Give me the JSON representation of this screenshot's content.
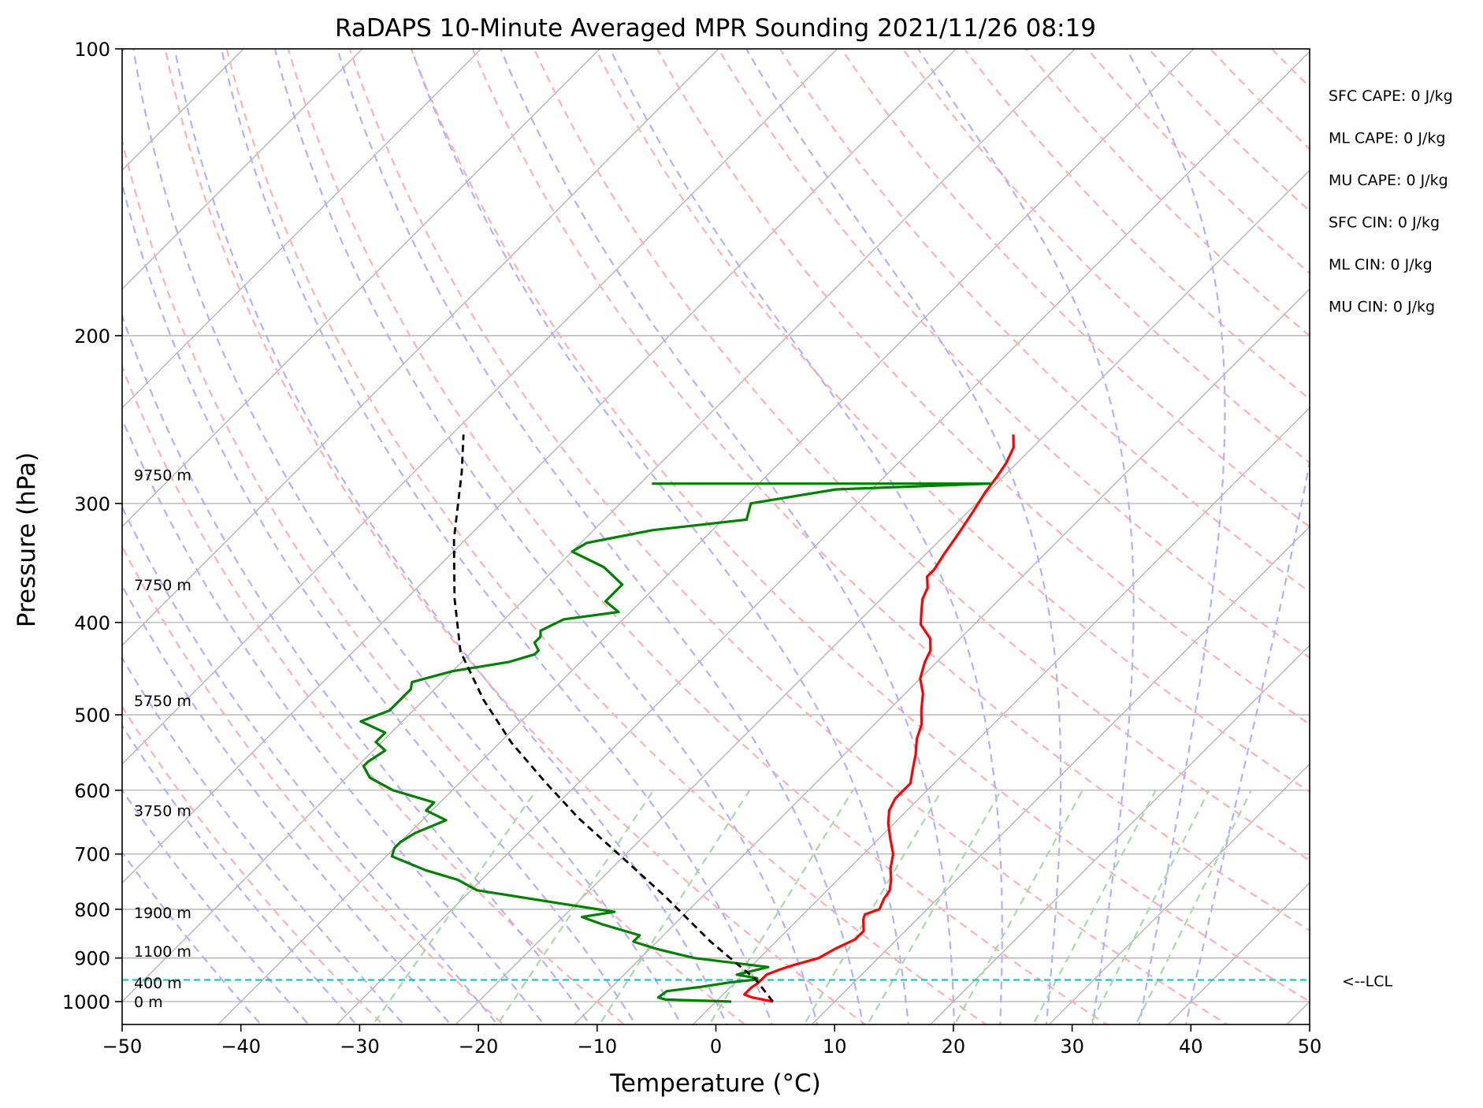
{
  "chart_data": {
    "type": "skew-t",
    "title": "RaDAPS 10-Minute Averaged MPR Sounding 2021/11/26 08:19",
    "xlabel": "Temperature (°C)",
    "ylabel": "Pressure (hPa)",
    "xlim": [
      -50,
      50
    ],
    "ylim": [
      1050,
      100
    ],
    "y_scale": "log",
    "grid": true,
    "x_ticks": [
      -50,
      -40,
      -30,
      -20,
      -10,
      0,
      10,
      20,
      30,
      40,
      50
    ],
    "x_tick_labels": [
      "−50",
      "−40",
      "−30",
      "−20",
      "−10",
      "0",
      "10",
      "20",
      "30",
      "40",
      "50"
    ],
    "y_ticks": [
      1000,
      900,
      800,
      700,
      600,
      500,
      400,
      300,
      200,
      100
    ],
    "y_tick_labels": [
      "1000",
      "900",
      "800",
      "700",
      "600",
      "500",
      "400",
      "300",
      "200",
      "100"
    ],
    "series": [
      {
        "type": "temperature",
        "color": "#ff0000",
        "points": [
          [
            4.8,
            1000
          ],
          [
            2.7,
            990
          ],
          [
            1.8,
            983
          ],
          [
            1.8,
            967
          ],
          [
            2,
            955
          ],
          [
            2,
            945
          ],
          [
            2,
            937
          ],
          [
            2.7,
            925
          ],
          [
            3.5,
            915
          ],
          [
            5,
            900
          ],
          [
            5.6,
            880
          ],
          [
            6.5,
            860
          ],
          [
            6.5,
            843
          ],
          [
            5.5,
            820
          ],
          [
            5.2,
            810
          ],
          [
            6,
            800
          ],
          [
            5.5,
            780
          ],
          [
            5.3,
            765
          ],
          [
            4.5,
            745
          ],
          [
            3.5,
            725
          ],
          [
            2.5,
            700
          ],
          [
            1,
            675
          ],
          [
            -0.5,
            650
          ],
          [
            -1.5,
            630
          ],
          [
            -2,
            612
          ],
          [
            -2,
            590
          ],
          [
            -3,
            570
          ],
          [
            -4,
            550
          ],
          [
            -5.2,
            530
          ],
          [
            -6,
            512
          ],
          [
            -7.2,
            495
          ],
          [
            -8.5,
            475
          ],
          [
            -10,
            458
          ],
          [
            -11,
            440
          ],
          [
            -11.5,
            428
          ],
          [
            -12.5,
            416
          ],
          [
            -14.5,
            402
          ],
          [
            -15.5,
            390
          ],
          [
            -16.5,
            378
          ],
          [
            -17,
            368
          ],
          [
            -18,
            358
          ],
          [
            -18,
            352
          ],
          [
            -18.5,
            338
          ],
          [
            -19,
            322
          ],
          [
            -19.6,
            306
          ],
          [
            -20.2,
            292
          ],
          [
            -20.5,
            282
          ],
          [
            -20.9,
            272
          ],
          [
            -21.6,
            262
          ],
          [
            -22.7,
            254
          ]
        ]
      },
      {
        "type": "dewpoint",
        "color": "#008000",
        "points": [
          [
            1.3,
            1000
          ],
          [
            -4.4,
            995
          ],
          [
            -5.2,
            990
          ],
          [
            -5,
            975
          ],
          [
            -2.5,
            965
          ],
          [
            -0.5,
            955
          ],
          [
            1.5,
            948
          ],
          [
            1.5,
            945
          ],
          [
            -0.5,
            937
          ],
          [
            1.5,
            920
          ],
          [
            -5.5,
            900
          ],
          [
            -9.5,
            880
          ],
          [
            -12,
            865
          ],
          [
            -12,
            852
          ],
          [
            -16,
            830
          ],
          [
            -18.4,
            815
          ],
          [
            -16.1,
            805
          ],
          [
            -21,
            790
          ],
          [
            -29.5,
            764
          ],
          [
            -32,
            745
          ],
          [
            -35.5,
            728
          ],
          [
            -39.5,
            704
          ],
          [
            -40,
            690
          ],
          [
            -40,
            680
          ],
          [
            -39.5,
            665
          ],
          [
            -38,
            645
          ],
          [
            -40.5,
            630
          ],
          [
            -40.5,
            618
          ],
          [
            -45,
            600
          ],
          [
            -48,
            582
          ],
          [
            -49.5,
            566
          ],
          [
            -49.5,
            560
          ],
          [
            -49,
            545
          ],
          [
            -50.5,
            534
          ],
          [
            -50.5,
            522
          ],
          [
            -53.5,
            508
          ],
          [
            -52,
            495
          ],
          [
            -52,
            484
          ],
          [
            -52,
            470
          ],
          [
            -52.5,
            462
          ],
          [
            -50,
            450
          ],
          [
            -46,
            440
          ],
          [
            -44.5,
            432
          ],
          [
            -44.5,
            428
          ],
          [
            -45.5,
            420
          ],
          [
            -45.5,
            414
          ],
          [
            -46,
            408
          ],
          [
            -45,
            397
          ],
          [
            -41,
            390
          ],
          [
            -43,
            380
          ],
          [
            -43,
            365
          ],
          [
            -46,
            350
          ],
          [
            -50,
            337
          ],
          [
            -49.5,
            330
          ],
          [
            -45,
            320
          ],
          [
            -38,
            312
          ],
          [
            -39,
            300
          ],
          [
            -33,
            290
          ],
          [
            -20.5,
            286
          ],
          [
            -49,
            286
          ]
        ]
      },
      {
        "type": "parcel",
        "color": "#000000",
        "points": [
          [
            4.8,
            1000
          ],
          [
            1.5,
            948
          ],
          [
            -5.5,
            865
          ],
          [
            -13,
            777
          ],
          [
            -20,
            706
          ],
          [
            -27,
            642
          ],
          [
            -33,
            587
          ],
          [
            -39,
            535
          ],
          [
            -45,
            482
          ],
          [
            -51,
            429
          ],
          [
            -56,
            377
          ],
          [
            -61,
            327
          ],
          [
            -66,
            278
          ],
          [
            -69,
            254
          ]
        ]
      }
    ],
    "height_labels": [
      {
        "label": "0 m",
        "p": 1000
      },
      {
        "label": "400 m",
        "p": 955
      },
      {
        "label": "1100 m",
        "p": 885
      },
      {
        "label": "1900 m",
        "p": 806
      },
      {
        "label": "3750 m",
        "p": 630
      },
      {
        "label": "5750 m",
        "p": 483
      },
      {
        "label": "7750 m",
        "p": 365
      },
      {
        "label": "9750 m",
        "p": 280
      }
    ],
    "lcl": {
      "p": 949,
      "label": "<--LCL",
      "color": "#00bfbf"
    },
    "indices": [
      "SFC CAPE: 0 J/kg",
      "ML CAPE: 0 J/kg",
      "MU CAPE: 0 J/kg",
      "SFC CIN: 0 J/kg",
      "ML CIN: 0 J/kg",
      "MU CIN: 0 J/kg"
    ],
    "reference_lines": {
      "isotherm_color": "#b0b0b0",
      "dry_adiabat_color": "#ffb0b0",
      "moist_adiabat_color": "#b0b0ff",
      "mixing_ratio_color": "#a8d8a8"
    }
  }
}
